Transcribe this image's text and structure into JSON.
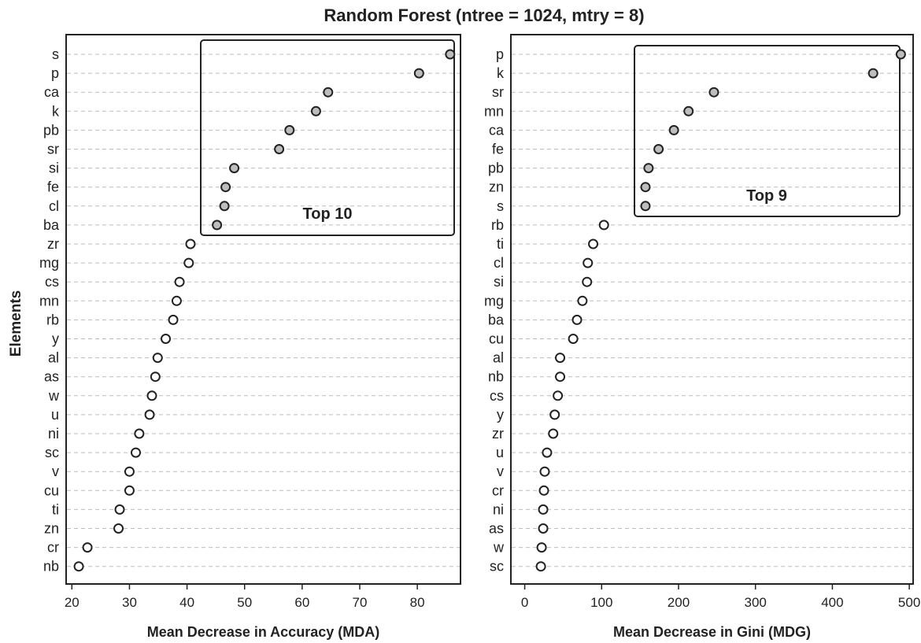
{
  "title": "Random Forest (ntree = 1024, mtry = 8)",
  "ylabel": "Elements",
  "chart_data": [
    {
      "type": "scatter",
      "xlabel": "Mean Decrease in Accuracy (MDA)",
      "xlim": [
        19,
        87.5
      ],
      "xticks": [
        20,
        30,
        40,
        50,
        60,
        70,
        80
      ],
      "top_label": "Top 10",
      "top_n": 10,
      "categories": [
        "s",
        "p",
        "ca",
        "k",
        "pb",
        "sr",
        "si",
        "fe",
        "cl",
        "ba",
        "zr",
        "mg",
        "cs",
        "mn",
        "rb",
        "y",
        "al",
        "as",
        "w",
        "u",
        "ni",
        "sc",
        "v",
        "cu",
        "ti",
        "zn",
        "cr",
        "nb"
      ],
      "values": [
        85.7,
        80.3,
        64.5,
        62.4,
        57.8,
        56.0,
        48.2,
        46.7,
        46.5,
        45.2,
        40.6,
        40.3,
        38.7,
        38.2,
        37.6,
        36.3,
        34.9,
        34.5,
        33.9,
        33.5,
        31.7,
        31.1,
        30.0,
        30.0,
        28.3,
        28.1,
        22.7,
        21.2
      ]
    },
    {
      "type": "scatter",
      "xlabel": "Mean Decrease in Gini (MDG)",
      "xlim": [
        -18,
        505
      ],
      "xticks": [
        0,
        100,
        200,
        300,
        400,
        500
      ],
      "top_label": "Top 9",
      "top_n": 9,
      "categories": [
        "p",
        "k",
        "sr",
        "mn",
        "ca",
        "fe",
        "pb",
        "zn",
        "s",
        "rb",
        "ti",
        "cl",
        "si",
        "mg",
        "ba",
        "cu",
        "al",
        "nb",
        "cs",
        "y",
        "zr",
        "u",
        "v",
        "cr",
        "ni",
        "as",
        "w",
        "sc"
      ],
      "values": [
        489,
        453,
        246,
        213,
        194,
        174,
        161,
        157,
        157,
        103,
        89,
        82,
        81,
        75,
        68,
        63,
        46,
        46,
        43,
        39,
        37,
        29,
        26,
        25,
        24,
        24,
        22,
        21
      ]
    }
  ],
  "colors": {
    "top": "#bdbdbd",
    "rest": "#ffffff",
    "stroke": "#222222",
    "grid": "#bdbdbd"
  }
}
